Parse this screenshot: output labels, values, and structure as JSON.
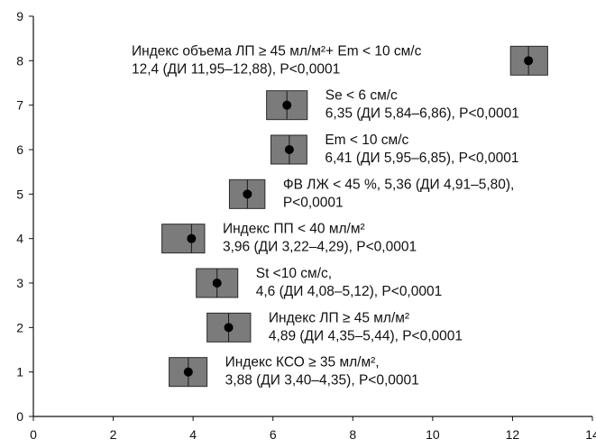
{
  "chart_data": {
    "type": "scatter",
    "title": "",
    "xlabel": "",
    "ylabel": "",
    "xlim": [
      0,
      14
    ],
    "ylim": [
      0,
      9
    ],
    "x_ticks": [
      "0",
      "2",
      "4",
      "6",
      "8",
      "10",
      "12",
      "14"
    ],
    "y_ticks": [
      "0",
      "1",
      "2",
      "3",
      "4",
      "5",
      "6",
      "7",
      "8",
      "9"
    ],
    "grid": false,
    "marker": "black dot on grey box",
    "colors": {
      "box": "#7b7b7b",
      "point": "#000000",
      "axis": "#111111"
    },
    "points": [
      {
        "y": 8,
        "x": 12.4,
        "ci": [
          11.95,
          12.88
        ],
        "lines": [
          "Индекс объема ЛП ≥ 45 мл/м²+ Em < 10 см/с",
          "12,4 (ДИ 11,95–12,88), P<0,0001"
        ]
      },
      {
        "y": 7,
        "x": 6.35,
        "ci": [
          5.84,
          6.86
        ],
        "lines": [
          "Se < 6 см/с",
          "6,35 (ДИ 5,84–6,86), P<0,0001"
        ]
      },
      {
        "y": 6,
        "x": 6.41,
        "ci": [
          5.95,
          6.85
        ],
        "lines": [
          "Em < 10 см/с",
          "6,41 (ДИ 5,95–6,85), P<0,0001"
        ]
      },
      {
        "y": 5,
        "x": 5.36,
        "ci": [
          4.91,
          5.8
        ],
        "lines": [
          "ФВ ЛЖ < 45 %, 5,36 (ДИ 4,91–5,80),",
          "P<0,0001"
        ]
      },
      {
        "y": 4,
        "x": 3.96,
        "ci": [
          3.22,
          4.29
        ],
        "lines": [
          "Индекс ПП < 40 мл/м²",
          "3,96 (ДИ 3,22–4,29), P<0,0001"
        ]
      },
      {
        "y": 3,
        "x": 4.6,
        "ci": [
          4.08,
          5.12
        ],
        "lines": [
          "St <10 см/с,",
          "4,6 (ДИ 4,08–5,12), P<0,0001"
        ]
      },
      {
        "y": 2,
        "x": 4.89,
        "ci": [
          4.35,
          5.44
        ],
        "lines": [
          "Индекс ЛП ≥ 45 мл/м²",
          "4,89 (ДИ 4,35–5,44), P<0,0001"
        ]
      },
      {
        "y": 1,
        "x": 3.88,
        "ci": [
          3.4,
          4.35
        ],
        "lines": [
          "Индекс КСО ≥ 35 мл/м²,",
          "3,88 (ДИ 3,40–4,35), P<0,0001"
        ]
      }
    ]
  }
}
